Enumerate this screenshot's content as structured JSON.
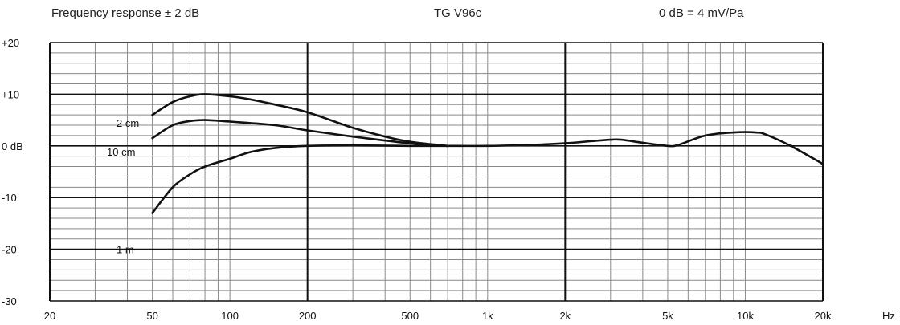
{
  "header": {
    "left": "Frequency response ± 2 dB",
    "center": "TG V96c",
    "right": "0 dB =  4 mV/Pa"
  },
  "chart_data": {
    "type": "line",
    "title": "TG V96c",
    "x_scale": "log",
    "xlim": [
      20,
      20000
    ],
    "ylim": [
      -30,
      20
    ],
    "xticks": [
      {
        "value": 20,
        "label": "20"
      },
      {
        "value": 50,
        "label": "50"
      },
      {
        "value": 100,
        "label": "100"
      },
      {
        "value": 200,
        "label": "200"
      },
      {
        "value": 500,
        "label": "500"
      },
      {
        "value": 1000,
        "label": "1k"
      },
      {
        "value": 2000,
        "label": "2k"
      },
      {
        "value": 5000,
        "label": "5k"
      },
      {
        "value": 10000,
        "label": "10k"
      },
      {
        "value": 20000,
        "label": "20k"
      }
    ],
    "x_unit": "Hz",
    "yticks": [
      {
        "value": 20,
        "label": "+20"
      },
      {
        "value": 10,
        "label": "+10"
      },
      {
        "value": 0,
        "label": "0 dB"
      },
      {
        "value": -10,
        "label": "-10"
      },
      {
        "value": -20,
        "label": "-20"
      },
      {
        "value": -30,
        "label": "-30"
      }
    ],
    "grid": true,
    "series": [
      {
        "name": "2 cm",
        "x": [
          50,
          60,
          70,
          80,
          100,
          120,
          150,
          200,
          300,
          400,
          500,
          700
        ],
        "y": [
          6,
          8.5,
          9.6,
          10,
          9.6,
          9,
          8,
          6.5,
          3.5,
          1.8,
          0.8,
          0
        ]
      },
      {
        "name": "10 cm",
        "x": [
          50,
          60,
          70,
          80,
          100,
          150,
          200,
          300,
          500,
          700
        ],
        "y": [
          1.5,
          4,
          4.8,
          5,
          4.7,
          4,
          3,
          1.8,
          0.5,
          0
        ]
      },
      {
        "name": "1 m",
        "x": [
          50,
          60,
          70,
          80,
          100,
          120,
          150,
          200,
          300,
          500,
          700
        ],
        "y": [
          -13,
          -8,
          -5.5,
          -4,
          -2.5,
          -1.2,
          -0.4,
          0,
          0.1,
          0,
          0
        ],
        "continues_as": "common"
      },
      {
        "name": "",
        "x": [
          700,
          1000,
          1500,
          2000,
          2500,
          3000,
          3300,
          4000,
          5000,
          5500,
          7000,
          9000,
          11000,
          12000,
          15000,
          20000
        ],
        "y": [
          0,
          0,
          0.2,
          0.5,
          0.9,
          1.2,
          1.2,
          0.6,
          0,
          0.2,
          2,
          2.6,
          2.6,
          2.2,
          0,
          -3.5
        ]
      }
    ]
  }
}
